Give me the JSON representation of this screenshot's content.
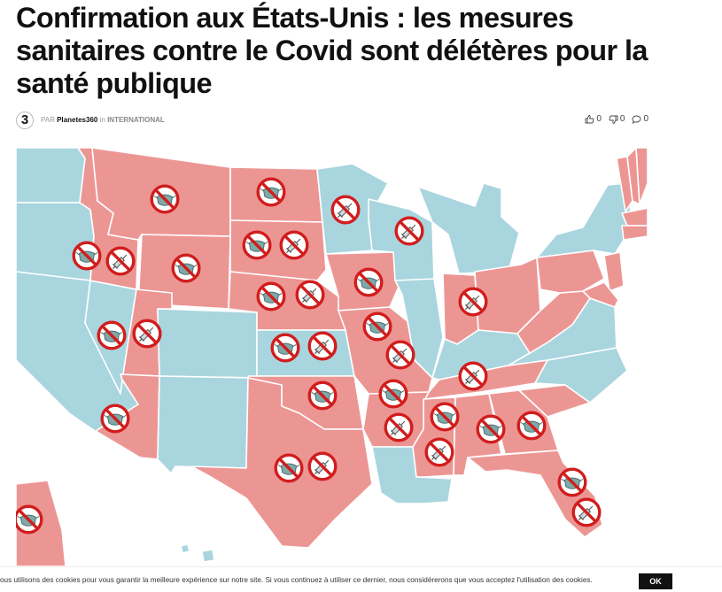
{
  "article": {
    "title": "Confirmation aux États-Unis : les mesures sanitaires contre le Covid sont délétères pour la santé publique",
    "byline_prefix": "PAR",
    "author": "Planetes360",
    "in_label": "in",
    "category": "INTERNATIONAL",
    "logo_text": "3",
    "likes": "0",
    "dislikes": "0",
    "comments": "0"
  },
  "colors": {
    "red_state": "#ec9694",
    "blue_state": "#a9d5df",
    "border": "#ffffff",
    "no_sign": "#d11d1d"
  },
  "map": {
    "icons": [
      "no-mask-sign",
      "no-vaccine-sign"
    ]
  },
  "cookie": {
    "text": "ous utilisons des cookies pour vous garantir la meilleure expérience sur notre site. Si vous continuez à utiliser ce dernier, nous considérerons que vous acceptez l'utilisation des cookies.",
    "ok_label": "OK"
  }
}
